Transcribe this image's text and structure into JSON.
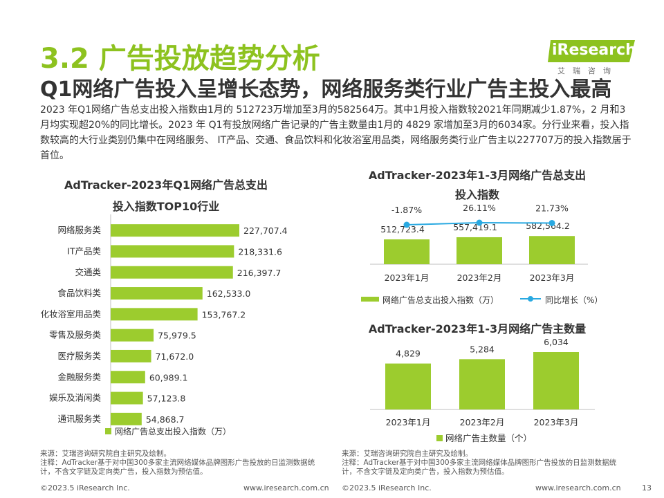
{
  "header": {
    "section_title": "3.2 广告投放趋势分析",
    "subtitle": "Q1网络广告投入呈增长态势，网络服务类行业广告主投入最高",
    "summary": "2023 年Q1网络广告总支出投入指数由1月的 512723万增加至3月的582564万。其中1月投入指数较2021年同期减少1.87%，2 月和3月均实现超20%的同比增长。2023 年 Q1有投放网络广告记录的广告主数量由1月的 4829 家增加至3月的6034家。分行业来看，投入指数较高的大行业类别仍集中在网络服务、 IT产品、交通、食品饮料和化妆浴室用品类，网络服务类行业广告主以227707万的投入指数居于首位。"
  },
  "logo": {
    "word": "iResearch",
    "sub": "艾瑞咨询",
    "color": "#8dc21f"
  },
  "colors": {
    "bar": "#9ccc2e",
    "line": "#29a9e1",
    "accent": "#8dc21f"
  },
  "left_chart": {
    "title_line1": "AdTracker-2023年Q1网络广告总支出",
    "title_line2": "投入指数TOP10行业",
    "legend": "网络广告总支出投入指数（万）"
  },
  "right_top_chart": {
    "title_line1": "AdTracker-2023年1-3月网络广告总支出",
    "title_line2": "投入指数",
    "legend_bar": "网络广告总支出投入指数（万）",
    "legend_line": "同比增长（%）"
  },
  "right_bottom_chart": {
    "title": "AdTracker-2023年1-3月网络广告主数量",
    "legend": "网络广告主数量（个）"
  },
  "chart_data": [
    {
      "type": "bar",
      "orientation": "horizontal",
      "title": "AdTracker-2023年Q1网络广告总支出投入指数TOP10行业",
      "categories": [
        "网络服务类",
        "IT产品类",
        "交通类",
        "食品饮料类",
        "化妆浴室用品类",
        "零售及服务类",
        "医疗服务类",
        "金融服务类",
        "娱乐及消闲类",
        "通讯服务类"
      ],
      "values": [
        227707.4,
        218331.6,
        216397.7,
        162533.0,
        153767.2,
        75979.5,
        71672.0,
        60989.1,
        57123.8,
        54868.7
      ],
      "labels": [
        "227,707.4",
        "218,331.6",
        "216,397.7",
        "162,533.0",
        "153,767.2",
        "75,979.5",
        "71,672.0",
        "60,989.1",
        "57,123.8",
        "54,868.7"
      ],
      "series": [
        {
          "name": "网络广告总支出投入指数（万）"
        }
      ]
    },
    {
      "type": "bar",
      "title": "AdTracker-2023年1-3月网络广告总支出投入指数",
      "categories": [
        "2023年1月",
        "2023年2月",
        "2023年3月"
      ],
      "series": [
        {
          "name": "网络广告总支出投入指数（万）",
          "type": "bar",
          "values": [
            512723.4,
            557419.1,
            582564.2
          ],
          "labels": [
            "512,723.4",
            "557,419.1",
            "582,564.2"
          ]
        },
        {
          "name": "同比增长（%）",
          "type": "line",
          "values": [
            -1.87,
            26.11,
            21.73
          ],
          "labels": [
            "-1.87%",
            "26.11%",
            "21.73%"
          ]
        }
      ]
    },
    {
      "type": "bar",
      "title": "AdTracker-2023年1-3月网络广告主数量",
      "categories": [
        "2023年1月",
        "2023年2月",
        "2023年3月"
      ],
      "series": [
        {
          "name": "网络广告主数量（个）",
          "values": [
            4829,
            5284,
            6034
          ],
          "labels": [
            "4,829",
            "5,284",
            "6,034"
          ]
        }
      ]
    }
  ],
  "notes": {
    "source": "来源：艾瑞咨询研究院自主研究及绘制。",
    "remark": "注释：AdTracker基于对中国300多家主流网络媒体品牌图形广告投放的日监测数据统计，不含文字链及定向类广告，投入指数为预估值。"
  },
  "footer": {
    "copyright": "©2023.5 iResearch Inc.",
    "url": "www.iresearch.com.cn",
    "page": "13"
  }
}
